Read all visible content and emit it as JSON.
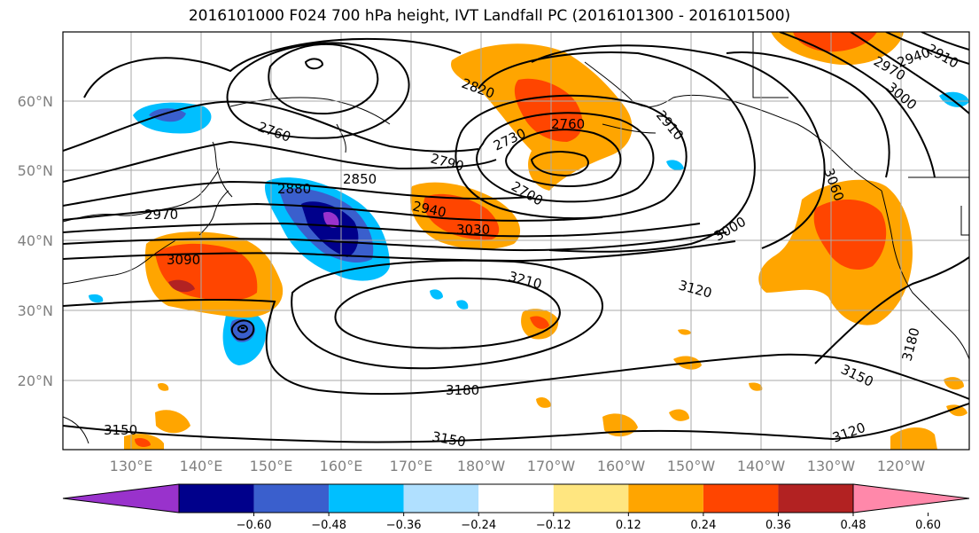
{
  "title": "2016101000 F024 700 hPa height, IVT Landfall PC (2016101300 - 2016101500)",
  "lat_labels": [
    "60°N",
    "50°N",
    "40°N",
    "30°N",
    "20°N"
  ],
  "lon_labels": [
    "130°E",
    "140°E",
    "150°E",
    "160°E",
    "170°E",
    "180°W",
    "170°W",
    "160°W",
    "150°W",
    "140°W",
    "130°W",
    "120°W"
  ],
  "contour_labels": [
    "2760",
    "2820",
    "2760",
    "2730",
    "2700",
    "2790",
    "2850",
    "2880",
    "2970",
    "2940",
    "3030",
    "3090",
    "3210",
    "3120",
    "3000",
    "3060",
    "2910",
    "3000",
    "2940",
    "2970",
    "2910",
    "3180",
    "3150",
    "3150",
    "3180",
    "3150",
    "3120"
  ],
  "colorbar": {
    "ticks": [
      "−0.60",
      "−0.48",
      "−0.36",
      "−0.24",
      "−0.12",
      "0.12",
      "0.24",
      "0.36",
      "0.48",
      "0.60"
    ],
    "colors": [
      "#9932CC",
      "#00008B",
      "#3A5FCD",
      "#00BFFF",
      "#B0E0FF",
      "#FFFFFF",
      "#FFE680",
      "#FFA500",
      "#FF4500",
      "#B22222",
      "#FF88AA"
    ]
  }
}
